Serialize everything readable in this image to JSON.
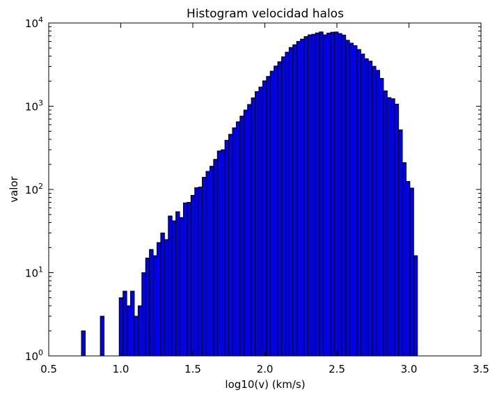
{
  "chart_data": {
    "type": "bar",
    "title": "Histogram velocidad halos",
    "xlabel": "log10(v) (km/s)",
    "ylabel": "valor",
    "yscale": "log",
    "xlim": [
      0.5,
      3.5
    ],
    "ylim": [
      1,
      10000
    ],
    "x_ticks": [
      "0.5",
      "1.0",
      "1.5",
      "2.0",
      "2.5",
      "3.0",
      "3.5"
    ],
    "x_tick_values": [
      0.5,
      1.0,
      1.5,
      2.0,
      2.5,
      3.0,
      3.5
    ],
    "y_ticks": [
      {
        "value": 1,
        "base": "10",
        "exp": "0"
      },
      {
        "value": 10,
        "base": "10",
        "exp": "1"
      },
      {
        "value": 100,
        "base": "10",
        "exp": "2"
      },
      {
        "value": 1000,
        "base": "10",
        "exp": "3"
      },
      {
        "value": 10000,
        "base": "10",
        "exp": "4"
      }
    ],
    "bin_start": 0.57,
    "bin_width": 0.0262,
    "counts": [
      1,
      0,
      1,
      0,
      0,
      0,
      2,
      0,
      0,
      1,
      0,
      3,
      0,
      0,
      0,
      1,
      5,
      6,
      4,
      6,
      3,
      4,
      10,
      15,
      19,
      16,
      23,
      30,
      25,
      48,
      42,
      54,
      46,
      69,
      70,
      85,
      105,
      107,
      140,
      165,
      190,
      230,
      290,
      300,
      390,
      460,
      550,
      650,
      760,
      900,
      1050,
      1260,
      1500,
      1700,
      2020,
      2280,
      2640,
      3040,
      3420,
      3920,
      4460,
      5080,
      5480,
      6010,
      6400,
      6870,
      7200,
      7320,
      7600,
      7810,
      7200,
      7560,
      7750,
      7800,
      7470,
      7160,
      6200,
      5720,
      5340,
      4800,
      4240,
      3720,
      3480,
      3020,
      2700,
      2160,
      1530,
      1270,
      1230,
      1060,
      520,
      210,
      125,
      104,
      16
    ],
    "bar_color": "#0000ee",
    "edge_color": "#000000",
    "grid": false,
    "legend": "none"
  }
}
